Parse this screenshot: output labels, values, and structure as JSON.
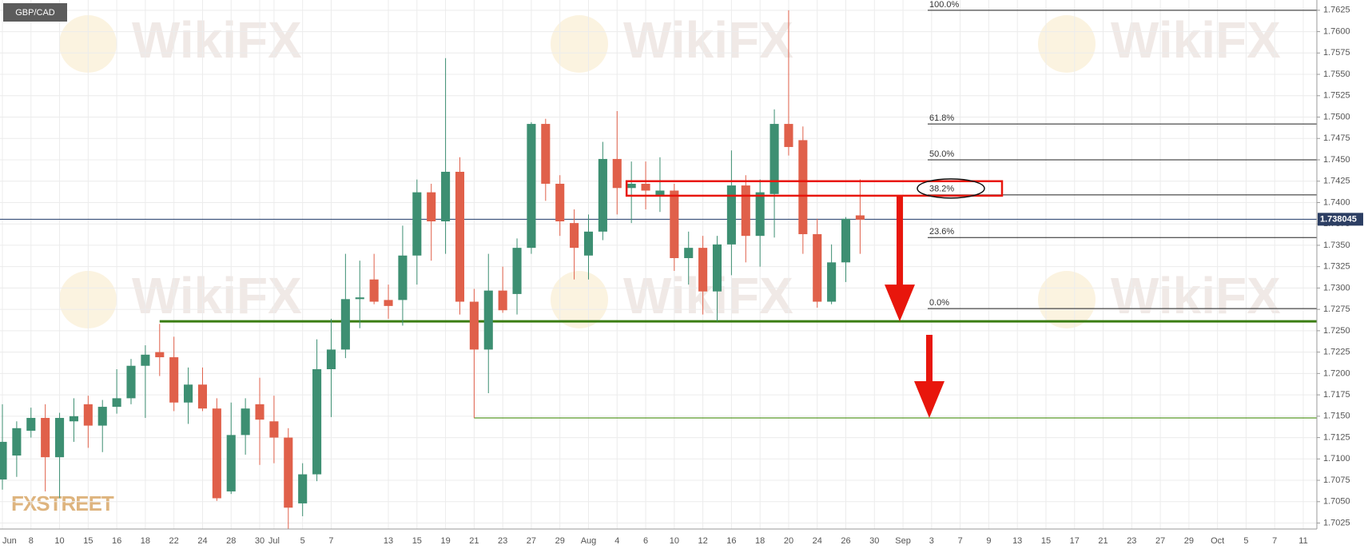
{
  "chart_data": {
    "type": "candlestick",
    "title": "GBP/CAD",
    "watermark": "WikiFX",
    "brand": "FXSTREET",
    "up_color": "#3d8f72",
    "down_color": "#e0604a",
    "grid": true,
    "categories": [
      "Jun",
      null,
      "8",
      null,
      "10",
      null,
      "15",
      null,
      "16",
      null,
      "18",
      null,
      "22",
      null,
      "24",
      null,
      "28",
      null,
      "30",
      "Jul",
      null,
      "5",
      null,
      "7",
      null,
      null,
      null,
      "13",
      null,
      "15",
      null,
      "19",
      null,
      "21",
      null,
      "23",
      null,
      "27",
      null,
      "29",
      null,
      "Aug",
      null,
      "4",
      null,
      "6",
      null,
      "10",
      null,
      "12",
      null,
      "16",
      null,
      "18",
      null,
      "20",
      null,
      "24",
      null,
      "26",
      null,
      "30",
      null,
      "Sep",
      null,
      "3",
      null,
      "7",
      null,
      "9",
      null,
      "13",
      null,
      "15",
      null,
      "17",
      null,
      "21",
      null,
      "23",
      null,
      "27",
      null,
      "29",
      null,
      "Oct",
      null,
      "5",
      null,
      "7",
      null,
      "11"
    ],
    "open": [
      1.7076,
      1.7104,
      1.7133,
      1.7148,
      1.7102,
      1.7144,
      1.7164,
      1.7139,
      1.7161,
      1.7171,
      1.7209,
      1.7225,
      1.7219,
      1.7166,
      1.7187,
      1.7159,
      1.7062,
      1.7128,
      1.7164,
      1.7144,
      1.7125,
      1.7048,
      1.7082,
      1.7205,
      1.7228,
      1.7287,
      1.731,
      1.7286,
      1.7286,
      1.7338,
      1.7412,
      1.7378,
      1.7436,
      1.7284,
      1.7228,
      1.7297,
      1.7293,
      1.7347,
      1.7492,
      1.7422,
      1.7376,
      1.7338,
      1.7366,
      1.7451,
      1.7417,
      1.7422,
      1.7407,
      1.7414,
      1.7335,
      1.7347,
      1.7296,
      1.7351,
      1.742,
      1.7361,
      1.741,
      1.7492,
      1.7473,
      1.7363,
      1.7284,
      1.733,
      1.7385,
      null,
      null,
      null,
      null,
      null,
      null,
      null,
      null,
      null,
      null,
      null,
      null,
      null,
      null,
      null,
      null,
      null,
      null,
      null,
      null,
      null,
      null,
      null,
      null,
      null,
      null,
      null,
      null,
      null,
      null,
      null
    ],
    "high": [
      1.7164,
      1.7144,
      1.716,
      1.7164,
      1.7154,
      1.7171,
      1.7174,
      1.7169,
      1.7205,
      1.7217,
      1.7233,
      1.7258,
      1.7243,
      1.7207,
      1.7207,
      1.7171,
      1.7166,
      1.7171,
      1.7195,
      1.7174,
      1.7136,
      1.7095,
      1.724,
      1.7264,
      1.734,
      1.7332,
      1.734,
      1.7304,
      1.7373,
      1.7427,
      1.7422,
      1.7569,
      1.7453,
      1.7299,
      1.734,
      1.7325,
      1.7358,
      1.7494,
      1.7498,
      1.7432,
      1.7392,
      1.7386,
      1.7471,
      1.7507,
      1.7448,
      1.7448,
      1.7453,
      1.7422,
      1.7366,
      1.7361,
      1.7361,
      1.7461,
      1.7432,
      1.7427,
      1.7509,
      1.7625,
      1.7489,
      1.7381,
      1.7351,
      1.7383,
      1.7427,
      null,
      null,
      null,
      null,
      null,
      null,
      null,
      null,
      null,
      null,
      null,
      null,
      null,
      null,
      null,
      null,
      null,
      null,
      null,
      null,
      null,
      null,
      null,
      null,
      null,
      null,
      null,
      null,
      null,
      null,
      null
    ],
    "low": [
      1.7064,
      1.7079,
      1.7125,
      1.7062,
      1.7054,
      1.712,
      1.7113,
      1.7108,
      1.7153,
      1.7164,
      1.7148,
      1.7197,
      1.7156,
      1.7141,
      1.7156,
      1.7051,
      1.7059,
      1.7105,
      1.7093,
      1.7095,
      1.7018,
      1.7033,
      1.7074,
      1.7149,
      1.7218,
      1.7253,
      1.7281,
      1.7264,
      1.7256,
      1.7304,
      1.7332,
      1.734,
      1.7269,
      1.7148,
      1.7177,
      1.7271,
      1.7269,
      1.734,
      1.7402,
      1.7361,
      1.731,
      1.731,
      1.7356,
      1.7386,
      1.7376,
      1.7392,
      1.7389,
      1.732,
      1.7304,
      1.7269,
      1.7261,
      1.7315,
      1.733,
      1.7325,
      1.7359,
      1.7455,
      1.734,
      1.7277,
      1.7281,
      1.7307,
      1.734,
      null,
      null,
      null,
      null,
      null,
      null,
      null,
      null,
      null,
      null,
      null,
      null,
      null,
      null,
      null,
      null,
      null,
      null,
      null,
      null,
      null,
      null,
      null,
      null,
      null,
      null,
      null,
      null,
      null,
      null,
      null
    ],
    "close": [
      1.712,
      1.7136,
      1.7148,
      1.7102,
      1.7148,
      1.715,
      1.7139,
      1.7161,
      1.7171,
      1.7209,
      1.7222,
      1.7219,
      1.7166,
      1.7187,
      1.7159,
      1.7054,
      1.7128,
      1.7159,
      1.7146,
      1.7125,
      1.7043,
      1.7082,
      1.7205,
      1.7228,
      1.7287,
      1.7289,
      1.7284,
      1.7279,
      1.7338,
      1.7412,
      1.7378,
      1.7436,
      1.7284,
      1.7228,
      1.7297,
      1.7274,
      1.7347,
      1.7492,
      1.7422,
      1.7378,
      1.7347,
      1.7366,
      1.7451,
      1.7417,
      1.7422,
      1.7414,
      1.7414,
      1.7335,
      1.7347,
      1.7296,
      1.7351,
      1.742,
      1.7361,
      1.7412,
      1.7492,
      1.7465,
      1.7363,
      1.7284,
      1.733,
      1.7381,
      1.738,
      null,
      null,
      null,
      null,
      null,
      null,
      null,
      null,
      null,
      null,
      null,
      null,
      null,
      null,
      null,
      null,
      null,
      null,
      null,
      null,
      null,
      null,
      null,
      null,
      null,
      null,
      null,
      null,
      null,
      null,
      null
    ],
    "ylim": [
      1.7018,
      1.7637
    ],
    "yticks": [
      1.7025,
      {
        "value": 1.705,
        "label": "1.7050"
      },
      1.7075,
      {
        "value": 1.71,
        "label": "1.7100"
      },
      1.7125,
      {
        "value": 1.715,
        "label": "1.7150"
      },
      1.7175,
      {
        "value": 1.72,
        "label": "1.7200"
      },
      1.7225,
      {
        "value": 1.725,
        "label": "1.7250"
      },
      1.7275,
      {
        "value": 1.73,
        "label": "1.7300"
      },
      1.7325,
      {
        "value": 1.735,
        "label": "1.7350"
      },
      1.7375,
      {
        "value": 1.74,
        "label": "1.7400"
      },
      1.7425,
      {
        "value": 1.745,
        "label": "1.7450"
      },
      1.7475,
      {
        "value": 1.75,
        "label": "1.7500"
      },
      1.7525,
      {
        "value": 1.755,
        "label": "1.7550"
      },
      1.7575,
      {
        "value": 1.76,
        "label": "1.7600"
      },
      1.7625
    ],
    "last_price": 1.738045,
    "fib_levels": [
      {
        "value": 1.7625,
        "label": "100.0%"
      },
      {
        "value": 1.7492,
        "label": "61.8%"
      },
      {
        "value": 1.745,
        "label": "50.0%"
      },
      {
        "value": 1.7409,
        "label": "38.2%"
      },
      {
        "value": 1.7359,
        "label": "23.6%"
      },
      {
        "value": 1.7276,
        "label": "0.0%"
      }
    ],
    "support_levels": [
      1.7261,
      1.7148
    ],
    "highlight_zone": [
      1.7425,
      1.7408
    ]
  }
}
